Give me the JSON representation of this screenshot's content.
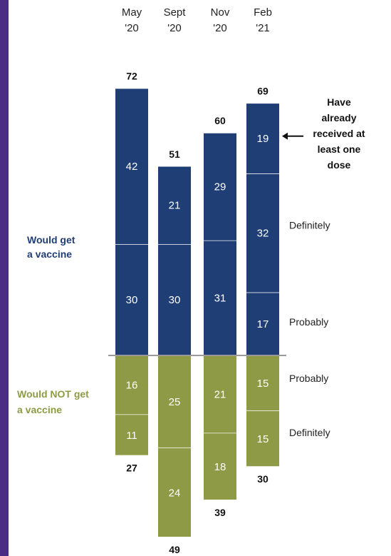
{
  "chart_data": {
    "type": "bar",
    "categories": [
      "May '20",
      "Sept '20",
      "Nov '20",
      "Feb '21"
    ],
    "period_lines": [
      [
        "May",
        "'20"
      ],
      [
        "Sept",
        "'20"
      ],
      [
        "Nov",
        "'20"
      ],
      [
        "Feb",
        "'21"
      ]
    ],
    "groups": {
      "would_get": {
        "label_lines": [
          "Would get",
          "a vaccine"
        ],
        "color": "#1f3e76"
      },
      "would_not_get": {
        "label_lines": [
          "Would NOT get",
          "a vaccine"
        ],
        "color": "#8e9a45"
      }
    },
    "series": [
      {
        "key": "already",
        "group": "would_get",
        "values": [
          null,
          null,
          null,
          19
        ]
      },
      {
        "key": "upper",
        "group": "would_get",
        "values": [
          42,
          21,
          29,
          32
        ]
      },
      {
        "key": "probably_get",
        "group": "would_get",
        "values": [
          30,
          30,
          31,
          17
        ]
      },
      {
        "key": "probably_not",
        "group": "would_not_get",
        "values": [
          16,
          25,
          21,
          15
        ]
      },
      {
        "key": "definitely_not",
        "group": "would_not_get",
        "values": [
          11,
          24,
          18,
          15
        ]
      }
    ],
    "totals": {
      "would_get": [
        72,
        51,
        60,
        69
      ],
      "would_not_get": [
        27,
        49,
        39,
        30
      ]
    },
    "side_labels": {
      "upper": "Definitely",
      "probably_get": "Probably",
      "probably_not": "Probably",
      "definitely_not": "Definitely"
    },
    "note_lines": [
      "Have",
      "already",
      "received at",
      "least one",
      "dose"
    ],
    "baseline_color": "#9a9a9a",
    "accent_stripe_color": "#4b2e83"
  }
}
